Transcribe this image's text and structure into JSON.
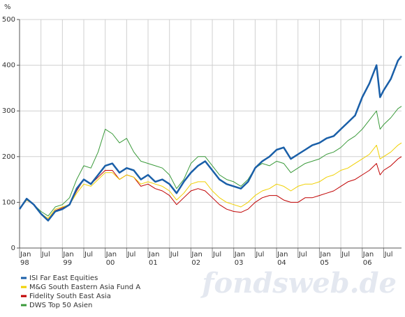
{
  "chart_data": {
    "type": "line",
    "y_unit": "%",
    "watermark": "fondsweb.de",
    "x": [
      "1998-01",
      "1998-03",
      "1998-05",
      "1998-07",
      "1998-09",
      "1998-11",
      "1999-01",
      "1999-03",
      "1999-05",
      "1999-07",
      "1999-09",
      "1999-11",
      "2000-01",
      "2000-03",
      "2000-05",
      "2000-07",
      "2000-09",
      "2000-11",
      "2001-01",
      "2001-03",
      "2001-05",
      "2001-07",
      "2001-09",
      "2001-11",
      "2002-01",
      "2002-03",
      "2002-05",
      "2002-07",
      "2002-09",
      "2002-11",
      "2003-01",
      "2003-03",
      "2003-05",
      "2003-07",
      "2003-09",
      "2003-11",
      "2004-01",
      "2004-03",
      "2004-05",
      "2004-07",
      "2004-09",
      "2004-11",
      "2005-01",
      "2005-03",
      "2005-05",
      "2005-07",
      "2005-09",
      "2005-11",
      "2006-01",
      "2006-03",
      "2006-05",
      "2006-06",
      "2006-07",
      "2006-09",
      "2006-11",
      "2006-12"
    ],
    "series": [
      {
        "name": "ISI Far East Equities",
        "color": "#1a5fa8",
        "width": 2.5,
        "values": [
          85,
          108,
          95,
          75,
          60,
          80,
          85,
          95,
          130,
          150,
          140,
          160,
          180,
          185,
          165,
          175,
          170,
          150,
          160,
          145,
          150,
          140,
          120,
          145,
          165,
          180,
          190,
          170,
          150,
          140,
          135,
          130,
          145,
          175,
          190,
          200,
          215,
          220,
          195,
          205,
          215,
          225,
          230,
          240,
          245,
          260,
          275,
          290,
          330,
          360,
          400,
          330,
          345,
          370,
          410,
          420
        ]
      },
      {
        "name": "M&G South Eastern Asia Fund A",
        "color": "#f0d000",
        "width": 1,
        "values": [
          85,
          105,
          95,
          75,
          65,
          85,
          90,
          95,
          120,
          140,
          135,
          150,
          165,
          165,
          150,
          160,
          155,
          140,
          145,
          140,
          135,
          125,
          105,
          120,
          140,
          145,
          145,
          125,
          110,
          100,
          95,
          90,
          100,
          115,
          125,
          130,
          140,
          135,
          125,
          135,
          140,
          140,
          145,
          155,
          160,
          170,
          175,
          185,
          195,
          205,
          225,
          195,
          200,
          210,
          225,
          230
        ]
      },
      {
        "name": "Fidelity South East Asia",
        "color": "#c00000",
        "width": 1,
        "values": [
          85,
          105,
          95,
          75,
          62,
          82,
          88,
          95,
          125,
          150,
          140,
          155,
          170,
          170,
          150,
          160,
          155,
          135,
          140,
          130,
          125,
          115,
          95,
          110,
          125,
          130,
          125,
          110,
          95,
          85,
          80,
          78,
          85,
          100,
          110,
          115,
          115,
          105,
          100,
          100,
          110,
          110,
          115,
          120,
          125,
          135,
          145,
          150,
          160,
          170,
          185,
          160,
          170,
          180,
          195,
          200
        ]
      },
      {
        "name": "DWS Top 50 Asien",
        "color": "#3a9a3a",
        "width": 1,
        "values": [
          85,
          105,
          95,
          80,
          70,
          90,
          95,
          110,
          150,
          180,
          175,
          210,
          260,
          250,
          230,
          240,
          210,
          190,
          185,
          180,
          175,
          160,
          130,
          150,
          185,
          200,
          200,
          180,
          160,
          150,
          145,
          135,
          150,
          175,
          185,
          180,
          190,
          185,
          165,
          175,
          185,
          190,
          195,
          205,
          210,
          220,
          235,
          245,
          260,
          280,
          300,
          260,
          270,
          285,
          305,
          310
        ]
      }
    ],
    "xlim": [
      "1998-01",
      "2006-12"
    ],
    "xticks": [
      {
        "value": "1998-01",
        "label": "Jan",
        "sublabel": "98"
      },
      {
        "value": "1998-07",
        "label": "Jul"
      },
      {
        "value": "1999-01",
        "label": "Jan",
        "sublabel": "99"
      },
      {
        "value": "1999-07",
        "label": "Jul"
      },
      {
        "value": "2000-01",
        "label": "Jan",
        "sublabel": "00"
      },
      {
        "value": "2000-07",
        "label": "Jul"
      },
      {
        "value": "2001-01",
        "label": "Jan",
        "sublabel": "01"
      },
      {
        "value": "2001-07",
        "label": "Jul"
      },
      {
        "value": "2002-01",
        "label": "Jan",
        "sublabel": "02"
      },
      {
        "value": "2002-07",
        "label": "Jul"
      },
      {
        "value": "2003-01",
        "label": "Jan",
        "sublabel": "03"
      },
      {
        "value": "2003-07",
        "label": "Jul"
      },
      {
        "value": "2004-01",
        "label": "Jan",
        "sublabel": "04"
      },
      {
        "value": "2004-07",
        "label": "Jul"
      },
      {
        "value": "2005-01",
        "label": "Jan",
        "sublabel": "05"
      },
      {
        "value": "2005-07",
        "label": "Jul"
      },
      {
        "value": "2006-01",
        "label": "Jan",
        "sublabel": "06"
      },
      {
        "value": "2006-07",
        "label": "Jul"
      }
    ],
    "ylim": [
      0,
      500
    ],
    "yticks": [
      0,
      100,
      200,
      300,
      400,
      500
    ],
    "grid": true,
    "legend": "bottom-left"
  }
}
